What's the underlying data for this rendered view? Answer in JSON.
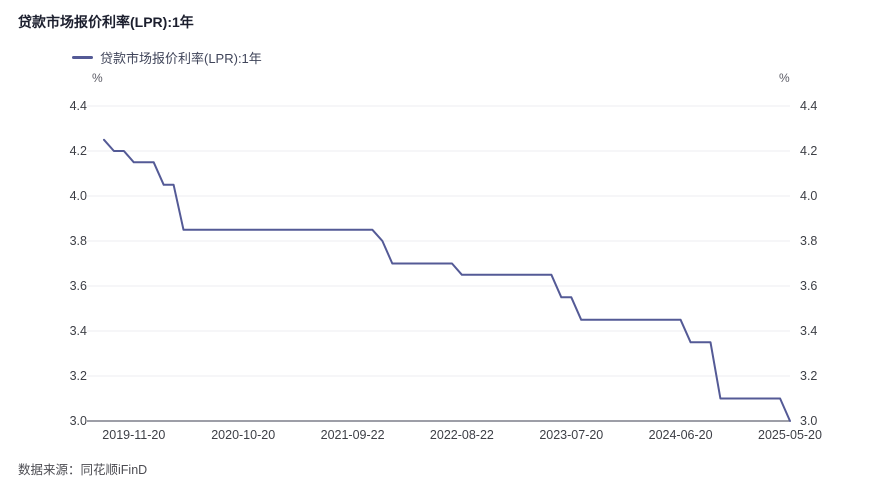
{
  "header": {
    "title": "贷款市场报价利率(LPR):1年"
  },
  "legend": {
    "label": "贷款市场报价利率(LPR):1年"
  },
  "axes": {
    "unit": "%"
  },
  "footer": {
    "source": "数据来源：同花顺iFinD"
  },
  "colors": {
    "line": "#545a96",
    "grid": "#ededf1",
    "axis": "#3b3e4f",
    "title_text": "#1c1f2e",
    "tick_text": "#3d3f46"
  },
  "chart_data": {
    "type": "line",
    "title": "贷款市场报价利率(LPR):1年",
    "unit": "%",
    "legend_position": "top-left",
    "grid": true,
    "ylim": [
      3.0,
      4.4
    ],
    "y_ticks": [
      "3.0",
      "3.2",
      "3.4",
      "3.6",
      "3.8",
      "4.0",
      "4.2",
      "4.4"
    ],
    "x_ticks": [
      {
        "index": 3,
        "label": "2019-11-20"
      },
      {
        "index": 14,
        "label": "2020-10-20"
      },
      {
        "index": 25,
        "label": "2021-09-22"
      },
      {
        "index": 36,
        "label": "2022-08-22"
      },
      {
        "index": 47,
        "label": "2023-07-20"
      },
      {
        "index": 58,
        "label": "2024-06-20"
      },
      {
        "index": 69,
        "label": "2025-05-20"
      }
    ],
    "series": [
      {
        "name": "贷款市场报价利率(LPR):1年",
        "color": "#545a96",
        "values": [
          4.25,
          4.2,
          4.2,
          4.15,
          4.15,
          4.15,
          4.05,
          4.05,
          3.85,
          3.85,
          3.85,
          3.85,
          3.85,
          3.85,
          3.85,
          3.85,
          3.85,
          3.85,
          3.85,
          3.85,
          3.85,
          3.85,
          3.85,
          3.85,
          3.85,
          3.85,
          3.85,
          3.85,
          3.8,
          3.7,
          3.7,
          3.7,
          3.7,
          3.7,
          3.7,
          3.7,
          3.65,
          3.65,
          3.65,
          3.65,
          3.65,
          3.65,
          3.65,
          3.65,
          3.65,
          3.65,
          3.55,
          3.55,
          3.45,
          3.45,
          3.45,
          3.45,
          3.45,
          3.45,
          3.45,
          3.45,
          3.45,
          3.45,
          3.45,
          3.35,
          3.35,
          3.35,
          3.1,
          3.1,
          3.1,
          3.1,
          3.1,
          3.1,
          3.1,
          3.0
        ]
      }
    ]
  }
}
